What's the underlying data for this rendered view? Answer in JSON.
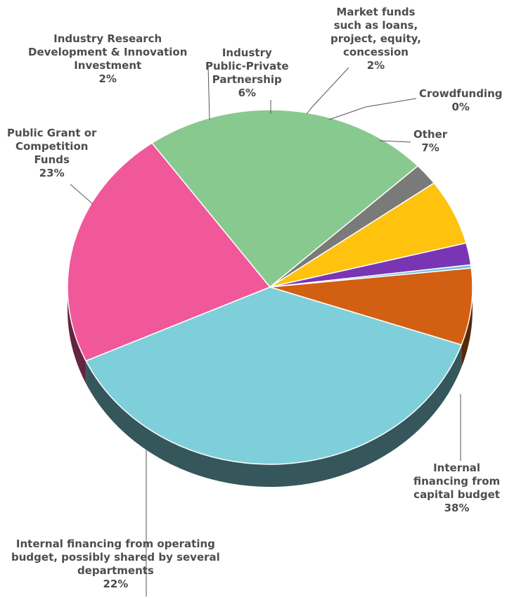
{
  "chart_data": {
    "type": "pie",
    "title": "",
    "slices": [
      {
        "lines": [
          "Internal",
          "financing from",
          "capital budget"
        ],
        "pct_label": "38%",
        "value": 38,
        "color": "#7fcfda"
      },
      {
        "lines": [
          "Internal financing from operating",
          "budget, possibly shared by several",
          "departments"
        ],
        "pct_label": "22%",
        "value": 22,
        "color": "#f0589a"
      },
      {
        "lines": [
          "Public Grant or",
          "Competition",
          "Funds"
        ],
        "pct_label": "23%",
        "value": 23,
        "color": "#88c98f"
      },
      {
        "lines": [
          "Industry Research",
          "Development & Innovation",
          "Investment"
        ],
        "pct_label": "2%",
        "value": 2,
        "color": "#7a7a7a"
      },
      {
        "lines": [
          "Industry",
          "Public-Private",
          "Partnership"
        ],
        "pct_label": "6%",
        "value": 6,
        "color": "#ffc20e"
      },
      {
        "lines": [
          "Market funds",
          "such as loans,",
          "project, equity,",
          "concession"
        ],
        "pct_label": "2%",
        "value": 2,
        "color": "#7a35b5"
      },
      {
        "lines": [
          "Crowdfunding"
        ],
        "pct_label": "0%",
        "value": 0.3,
        "color": "#6fc4e0"
      },
      {
        "lines": [
          "Other"
        ],
        "pct_label": "7%",
        "value": 7,
        "color": "#d35f12"
      }
    ],
    "label_color": "#4d4d4d",
    "legend": "none"
  }
}
